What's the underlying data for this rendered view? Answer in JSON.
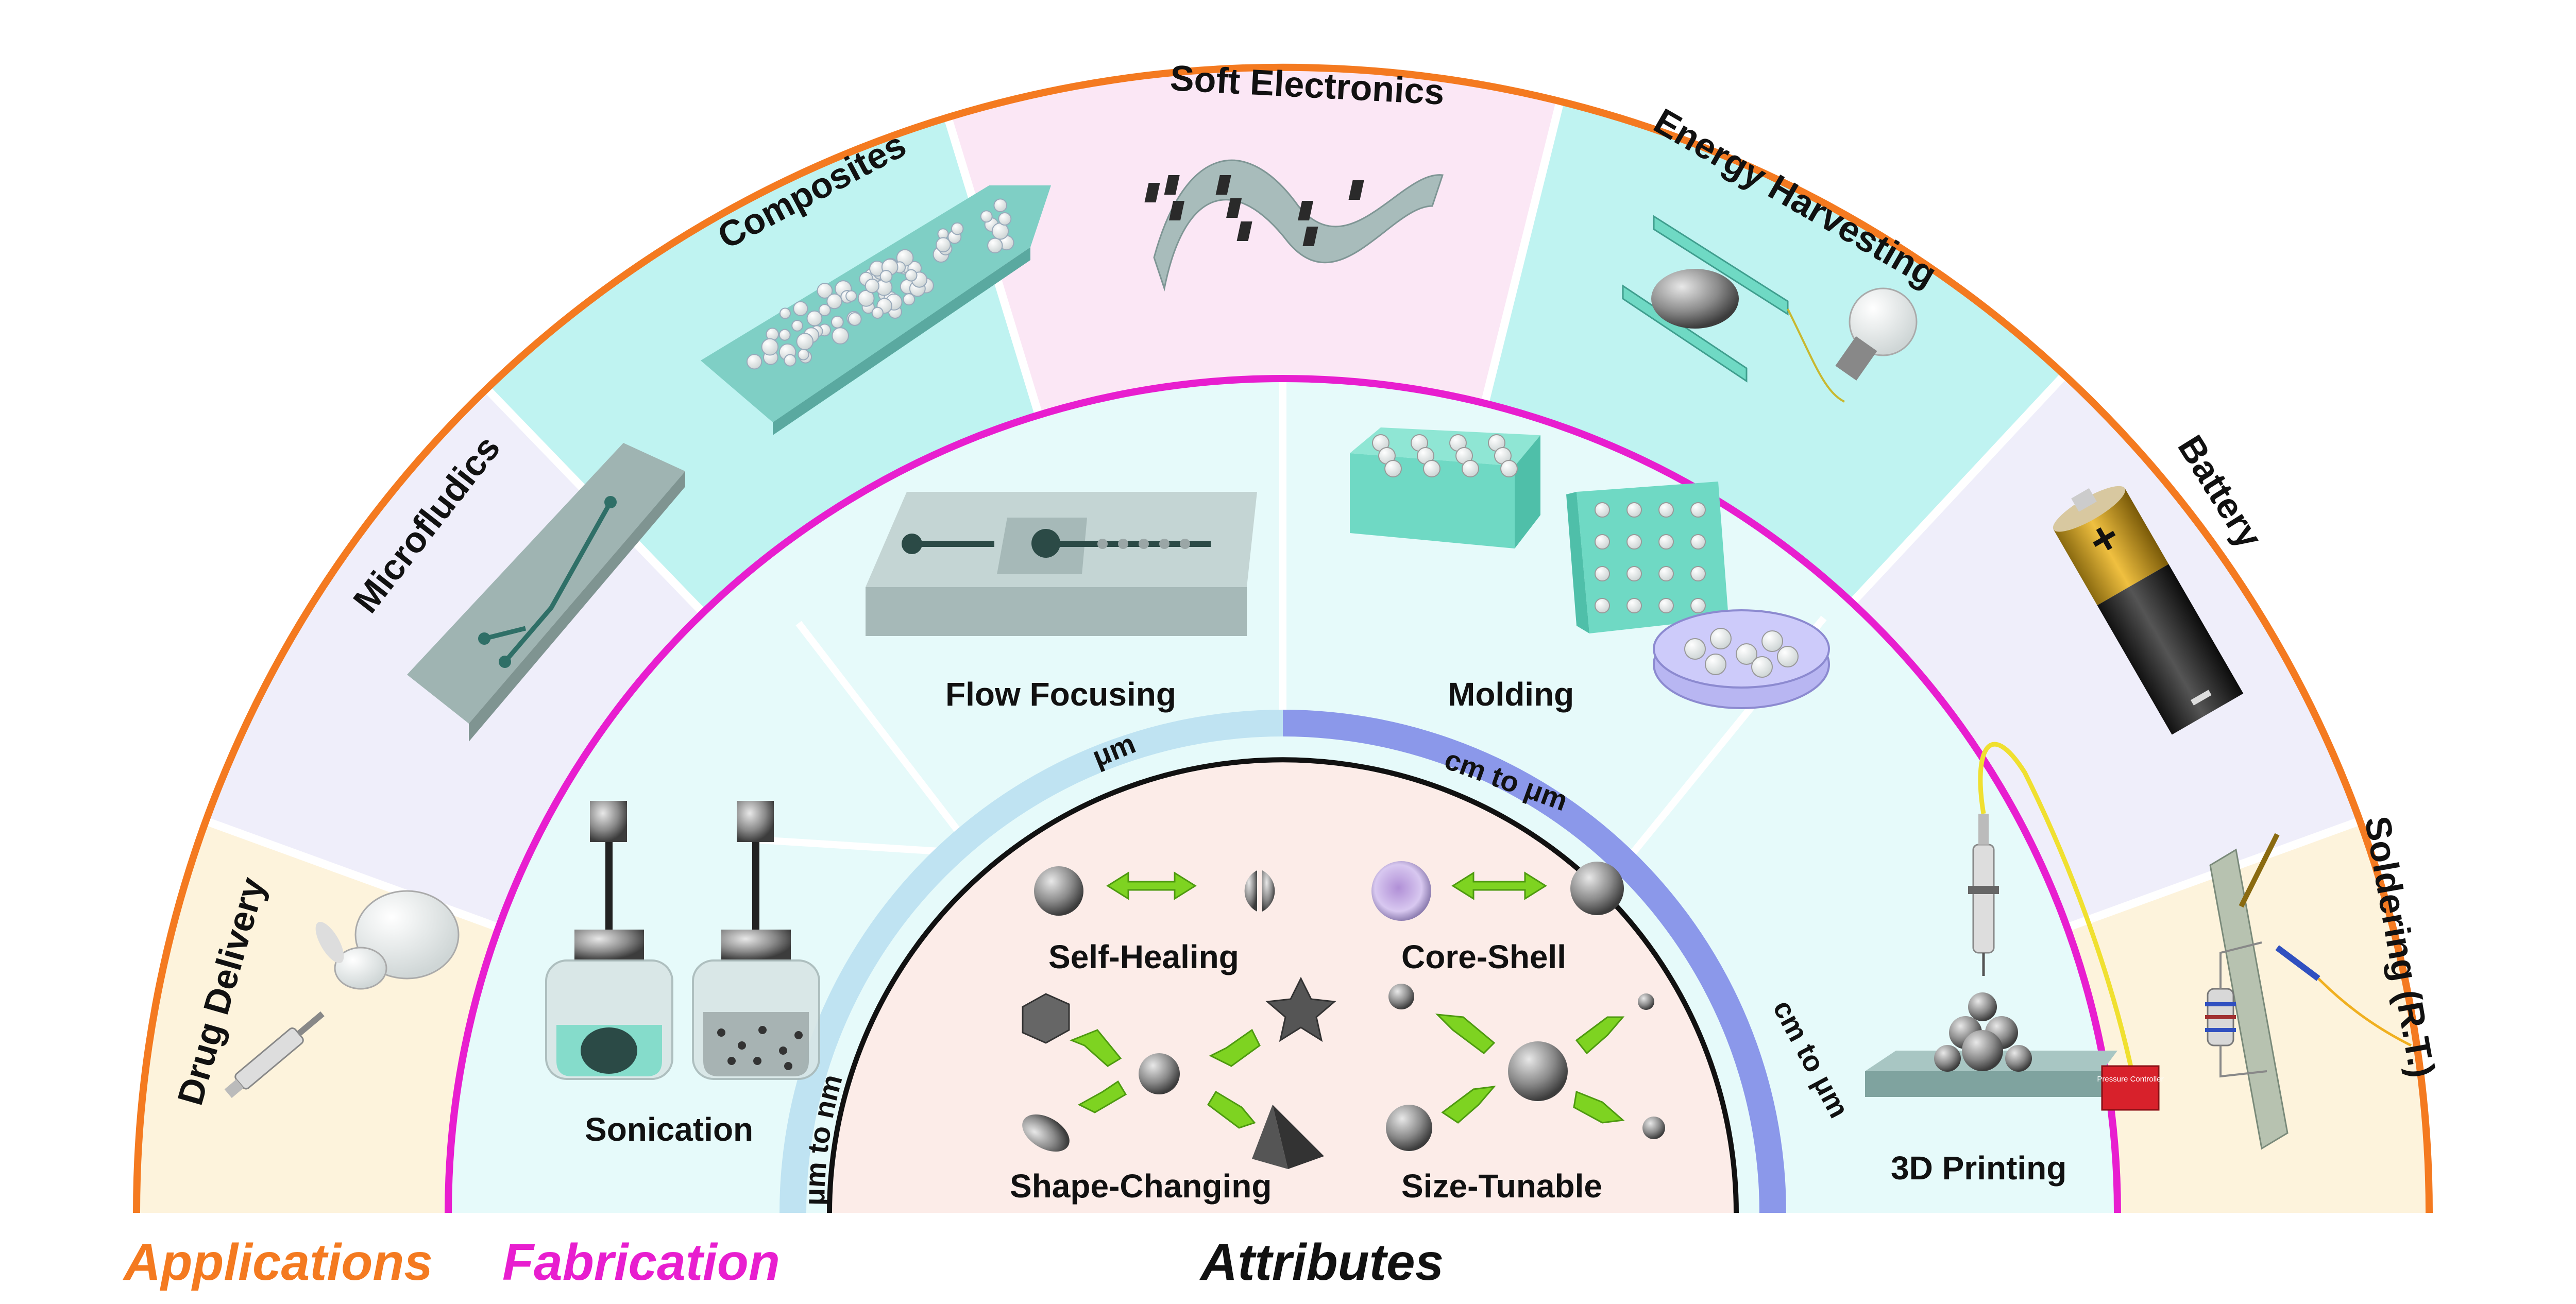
{
  "applications": {
    "items": [
      {
        "label": "Drug Delivery",
        "fill": "#fdf3dc"
      },
      {
        "label": "Microfludics",
        "fill": "#efeefa"
      },
      {
        "label": "Composites",
        "fill": "#bff3f1"
      },
      {
        "label": "Soft Electronics",
        "fill": "#fbe7f5"
      },
      {
        "label": "Energy Harvesting",
        "fill": "#bff3f1"
      },
      {
        "label": "Battery",
        "fill": "#efeefa"
      },
      {
        "label": "Soldering (R.T.)",
        "fill": "#fdf3dc"
      }
    ]
  },
  "fabrication": {
    "items": [
      {
        "label": "Sonication"
      },
      {
        "label": "Flow Focusing"
      },
      {
        "label": "Molding"
      },
      {
        "label": "3D Printing"
      }
    ],
    "device_label": "Pressure Controller"
  },
  "attributes": {
    "scale_labels": [
      "μm to nm",
      "μm",
      "cm to μm",
      "cm to μm"
    ],
    "items": [
      {
        "label": "Self-Healing"
      },
      {
        "label": "Core-Shell"
      },
      {
        "label": "Shape-Changing"
      },
      {
        "label": "Size-Tunable"
      }
    ]
  },
  "legend": {
    "applications": "Applications",
    "fabrication": "Fabrication",
    "attributes": "Attributes"
  },
  "colors": {
    "applications_ring": "#f47a20",
    "fabrication_ring": "#e81ecf",
    "attributes_ring": "#111111",
    "scale_light": "#bfe3f2",
    "scale_dark": "#8b98ea",
    "arrow_green": "#7ed321",
    "mold_teal": "#6fd9c4",
    "inner_fill": "#fcece8",
    "fab_fill": "#e6fafa"
  }
}
